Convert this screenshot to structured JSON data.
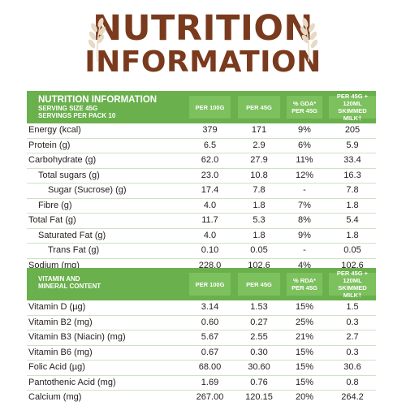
{
  "title": {
    "line1": "NUTRITION",
    "line2": "INFORMATION"
  },
  "colors": {
    "title_brown": "#7a3a1d",
    "header_green": "#6ab04c",
    "header_col_green": "#7dc05e",
    "divider": "#cfe3c4"
  },
  "nutrition_table": {
    "header_title": "NUTRITION INFORMATION",
    "header_sub1": "SERVING SIZE 45G",
    "header_sub2": "SERVINGS PER PACK 10",
    "columns": [
      "PER 100G",
      "PER 45G",
      "% GDA* PER 45G",
      "PER 45G + 120ML SKIMMED MILK†"
    ],
    "rows": [
      {
        "name": "Energy (kcal)",
        "indent": 0,
        "values": [
          "379",
          "171",
          "9%",
          "205"
        ]
      },
      {
        "name": "Protein (g)",
        "indent": 0,
        "values": [
          "6.5",
          "2.9",
          "6%",
          "5.9"
        ]
      },
      {
        "name": "Carbohydrate (g)",
        "indent": 0,
        "values": [
          "62.0",
          "27.9",
          "11%",
          "33.4"
        ]
      },
      {
        "name": "Total sugars (g)",
        "indent": 1,
        "values": [
          "23.0",
          "10.8",
          "12%",
          "16.3"
        ]
      },
      {
        "name": "Sugar (Sucrose) (g)",
        "indent": 2,
        "values": [
          "17.4",
          "7.8",
          "-",
          "7.8"
        ]
      },
      {
        "name": "Fibre (g)",
        "indent": 1,
        "values": [
          "4.0",
          "1.8",
          "7%",
          "1.8"
        ]
      },
      {
        "name": "Total Fat (g)",
        "indent": 0,
        "values": [
          "11.7",
          "5.3",
          "8%",
          "5.4"
        ]
      },
      {
        "name": "Saturated Fat (g)",
        "indent": 1,
        "values": [
          "4.0",
          "1.8",
          "9%",
          "1.8"
        ]
      },
      {
        "name": "Trans Fat (g)",
        "indent": 2,
        "values": [
          "0.10",
          "0.05",
          "-",
          "0.05"
        ]
      },
      {
        "name": "Sodium (mg)",
        "indent": 0,
        "values": [
          "228.0",
          "102.6",
          "4%",
          "102.6"
        ]
      }
    ]
  },
  "vitamin_table": {
    "header_title1": "VITAMIN AND",
    "header_title2": "MINERAL CONTENT",
    "columns": [
      "PER 100G",
      "PER 45G",
      "% RDA* PER 45G",
      "PER 45G + 120ML SKIMMED MILK†"
    ],
    "rows": [
      {
        "name": "Vitamin D (µg)",
        "indent": 0,
        "values": [
          "3.14",
          "1.53",
          "15%",
          "1.5"
        ]
      },
      {
        "name": "Vitamin B2 (mg)",
        "indent": 0,
        "values": [
          "0.60",
          "0.27",
          "25%",
          "0.3"
        ]
      },
      {
        "name": "Vitamin B3 (Niacin) (mg)",
        "indent": 0,
        "values": [
          "5.67",
          "2.55",
          "21%",
          "2.7"
        ]
      },
      {
        "name": "Vitamin B6 (mg)",
        "indent": 0,
        "values": [
          "0.67",
          "0.30",
          "15%",
          "0.3"
        ]
      },
      {
        "name": "Folic Acid (µg)",
        "indent": 0,
        "values": [
          "68.00",
          "30.60",
          "15%",
          "30.6"
        ]
      },
      {
        "name": "Pantothenic Acid (mg)",
        "indent": 0,
        "values": [
          "1.69",
          "0.76",
          "15%",
          "0.8"
        ]
      },
      {
        "name": "Calcium (mg)",
        "indent": 0,
        "values": [
          "267.00",
          "120.15",
          "20%",
          "264.2"
        ]
      }
    ]
  }
}
